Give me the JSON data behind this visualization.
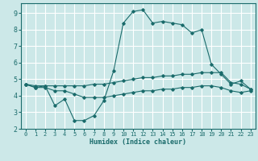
{
  "xlabel": "Humidex (Indice chaleur)",
  "bg_color": "#cce8e8",
  "grid_color": "#ffffff",
  "line_color": "#1a6b6b",
  "xlim": [
    -0.5,
    23.5
  ],
  "ylim": [
    2.0,
    9.6
  ],
  "yticks": [
    2,
    3,
    4,
    5,
    6,
    7,
    8,
    9
  ],
  "xticks": [
    0,
    1,
    2,
    3,
    4,
    5,
    6,
    7,
    8,
    9,
    10,
    11,
    12,
    13,
    14,
    15,
    16,
    17,
    18,
    19,
    20,
    21,
    22,
    23
  ],
  "line1_x": [
    0,
    1,
    2,
    3,
    4,
    5,
    6,
    7,
    8,
    9,
    10,
    11,
    12,
    13,
    14,
    15,
    16,
    17,
    18,
    19,
    20,
    21,
    22,
    23
  ],
  "line1_y": [
    4.7,
    4.5,
    4.6,
    3.4,
    3.8,
    2.5,
    2.5,
    2.8,
    3.7,
    5.5,
    8.4,
    9.1,
    9.2,
    8.4,
    8.5,
    8.4,
    8.3,
    7.8,
    8.0,
    5.9,
    5.3,
    4.7,
    4.9,
    4.4
  ],
  "line2_x": [
    0,
    1,
    2,
    3,
    4,
    5,
    6,
    7,
    8,
    9,
    10,
    11,
    12,
    13,
    14,
    15,
    16,
    17,
    18,
    19,
    20,
    21,
    22,
    23
  ],
  "line2_y": [
    4.7,
    4.6,
    4.6,
    4.6,
    4.6,
    4.6,
    4.6,
    4.7,
    4.7,
    4.8,
    4.9,
    5.0,
    5.1,
    5.1,
    5.2,
    5.2,
    5.3,
    5.3,
    5.4,
    5.4,
    5.4,
    4.8,
    4.7,
    4.4
  ],
  "line3_x": [
    0,
    1,
    2,
    3,
    4,
    5,
    6,
    7,
    8,
    9,
    10,
    11,
    12,
    13,
    14,
    15,
    16,
    17,
    18,
    19,
    20,
    21,
    22,
    23
  ],
  "line3_y": [
    4.7,
    4.5,
    4.5,
    4.3,
    4.3,
    4.1,
    3.9,
    3.9,
    3.9,
    4.0,
    4.1,
    4.2,
    4.3,
    4.3,
    4.4,
    4.4,
    4.5,
    4.5,
    4.6,
    4.6,
    4.5,
    4.3,
    4.2,
    4.3
  ]
}
